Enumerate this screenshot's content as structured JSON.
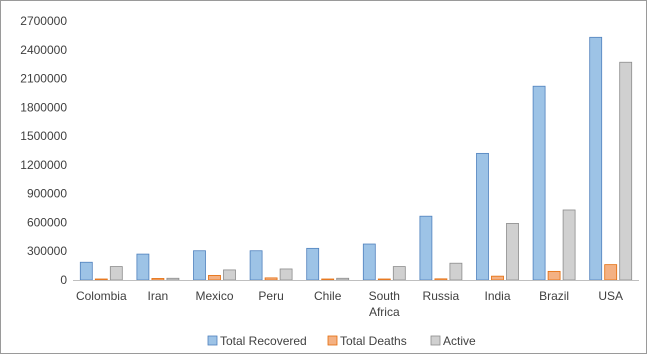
{
  "chart_data": {
    "type": "bar",
    "categories": [
      "Colombia",
      "Iran",
      "Mexico",
      "Peru",
      "Chile",
      "South Africa",
      "Russia",
      "India",
      "Brazil",
      "USA"
    ],
    "category_lines": [
      [
        "Colombia"
      ],
      [
        "Iran"
      ],
      [
        "Mexico"
      ],
      [
        "Peru"
      ],
      [
        "Chile"
      ],
      [
        "South",
        "Africa"
      ],
      [
        "Russia"
      ],
      [
        "India"
      ],
      [
        "Brazil"
      ],
      [
        "USA"
      ]
    ],
    "series": [
      {
        "name": "Total Recovered",
        "color": "#9dc3e6",
        "stroke": "#4f81bd",
        "values": [
          185000,
          270000,
          305000,
          305000,
          330000,
          375000,
          665000,
          1320000,
          2020000,
          2530000
        ]
      },
      {
        "name": "Total Deaths",
        "color": "#f4b183",
        "stroke": "#e46c0a",
        "values": [
          9000,
          16000,
          48000,
          22000,
          9000,
          8000,
          12000,
          40000,
          90000,
          160000
        ]
      },
      {
        "name": "Active",
        "color": "#d0d0d0",
        "stroke": "#8c8c8c",
        "values": [
          140000,
          18000,
          105000,
          115000,
          18000,
          140000,
          175000,
          590000,
          730000,
          2270000
        ]
      }
    ],
    "y_ticks": [
      "0",
      "300000",
      "600000",
      "900000",
      "1200000",
      "1500000",
      "1800000",
      "2100000",
      "2400000",
      "2700000"
    ],
    "ylim": [
      0,
      2700000
    ],
    "title": "",
    "xlabel": "",
    "ylabel": "",
    "grid": false,
    "legend_position": "bottom"
  }
}
